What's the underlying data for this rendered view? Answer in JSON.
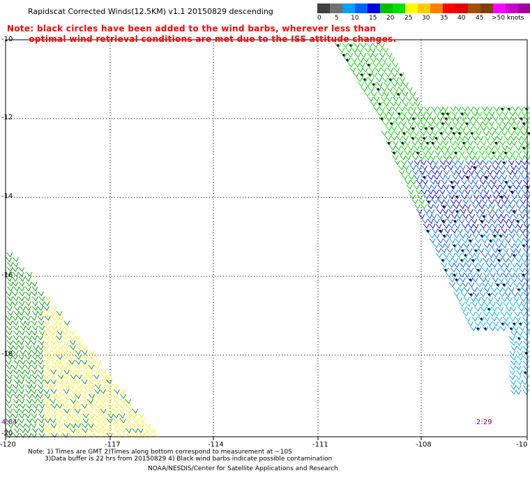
{
  "header": {
    "title": "Rapidscat Corrected Winds(12.5KM) v1.1 20150829 descending",
    "note_line1": "Note: black circles have been added to the wind barbs, wherever less than",
    "note_line2": "       optimal wind retrieval conditions are met due to the ISS attitude changes."
  },
  "color_scale": {
    "colors": [
      "#404040",
      "#707070",
      "#00a0ff",
      "#0060ff",
      "#0000e0",
      "#00c000",
      "#00e000",
      "#ffff00",
      "#ffcc00",
      "#ff8000",
      "#ff0000",
      "#e00000",
      "#a05000",
      "#804000",
      "#ff00ff",
      "#cc00cc",
      "#a000a0",
      "#6000a0"
    ],
    "labels": [
      "0",
      "5",
      "10",
      "15",
      "20",
      "25",
      "30",
      "35",
      "40",
      "45",
      ">50 knots"
    ]
  },
  "map": {
    "lat_labels": [
      "-10",
      "-12",
      "-14",
      "-16",
      "-18",
      "-20"
    ],
    "lon_labels": [
      "-120",
      "-117",
      "-114",
      "-111",
      "-108",
      "-10"
    ],
    "time_left": "4:04",
    "time_right": "2:29"
  },
  "footer": {
    "line1": "Note: 1) Times are GMT 2)Times along bottom correspond to measurement at ~10S",
    "line2": "3)Data buffer is 22 hrs from 20150829 4) Black wind barbs indicate possible contamination",
    "line3": "NOAA/NESDIS/Center for Satellite Applications and Research"
  }
}
